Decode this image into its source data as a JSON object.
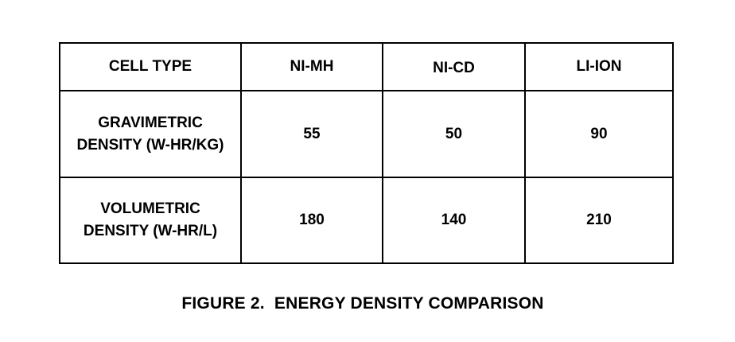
{
  "table": {
    "header": {
      "row_label": "CELL TYPE",
      "columns": [
        "NI-MH",
        "NI-CD",
        "LI-ION"
      ]
    },
    "rows": [
      {
        "label_line1": "GRAVIMETRIC",
        "label_line2": "DENSITY (W-HR/KG)",
        "values": [
          "55",
          "50",
          "90"
        ]
      },
      {
        "label_line1": "VOLUMETRIC",
        "label_line2": "DENSITY (W-HR/L)",
        "values": [
          "180",
          "140",
          "210"
        ]
      }
    ]
  },
  "caption": "FIGURE 2.  ENERGY DENSITY COMPARISON"
}
